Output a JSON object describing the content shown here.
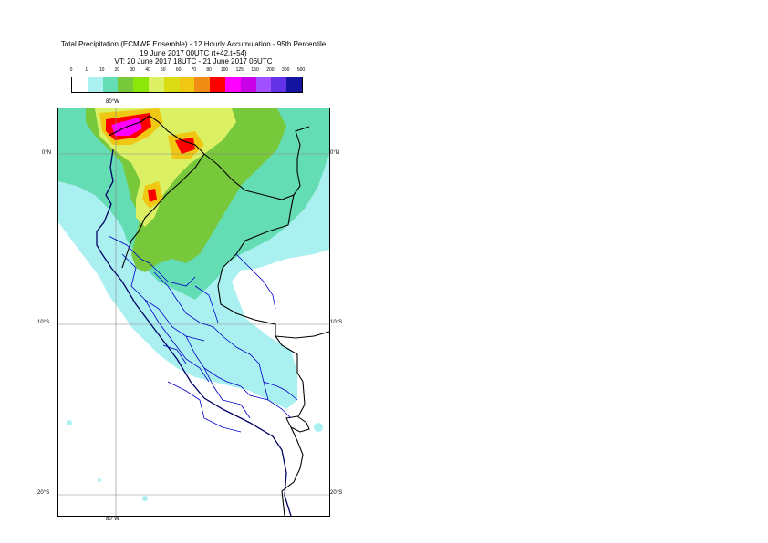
{
  "title": {
    "line1": "Total Precipitation (ECMWF Ensemble) - 12 Hourly Accumulation - 95th Percentile",
    "line2": "19 June 2017 00UTC (t+42,t+54)",
    "line3": "VT: 20 June 2017 18UTC - 21 June 2017 06UTC"
  },
  "legend": {
    "thresholds": [
      "0",
      "1",
      "10",
      "20",
      "30",
      "40",
      "50",
      "60",
      "70",
      "80",
      "100",
      "125",
      "150",
      "200",
      "300",
      "500"
    ],
    "colors": [
      "#ffffff",
      "#aaf0f0",
      "#64dcb4",
      "#78c83c",
      "#8ce60a",
      "#dcf064",
      "#dcdc14",
      "#f0c814",
      "#f08c14",
      "#ff0000",
      "#ff00ff",
      "#c800e6",
      "#a050ff",
      "#6432e6",
      "#1414a0"
    ]
  },
  "axes": {
    "lon_top": "80°W",
    "lon_bottom": "80°W",
    "lat_0_left": "0°N",
    "lat_0_right": "0°N",
    "lat_10_left": "10°S",
    "lat_10_right": "10°S",
    "lat_20_left": "20°S",
    "lat_20_right": "20°S"
  },
  "map": {
    "region": "Peru / Ecuador",
    "field_colors": {
      "light": "#aaf0f0",
      "medium": "#64dcb4",
      "green": "#78c83c",
      "yellow": "#dcf064",
      "orange": "#f0c814",
      "red": "#ff0000",
      "magenta": "#ff00ff"
    },
    "border_color": "#000000",
    "admin_color": "#0000c8",
    "coast_color": "#000064"
  }
}
